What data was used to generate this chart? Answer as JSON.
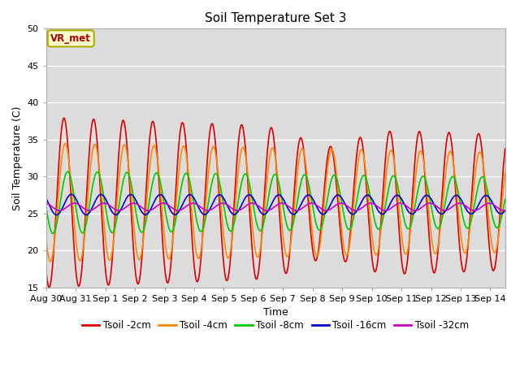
{
  "title": "Soil Temperature Set 3",
  "xlabel": "Time",
  "ylabel": "Soil Temperature (C)",
  "ylim": [
    15,
    50
  ],
  "xlim_days": 15.5,
  "annotation": "VR_met",
  "tick_labels": [
    "Aug 30",
    "Aug 31",
    "Sep 1",
    "Sep 2",
    "Sep 3",
    "Sep 4",
    "Sep 5",
    "Sep 6",
    "Sep 7",
    "Sep 8",
    "Sep 9",
    "Sep 10",
    "Sep 11",
    "Sep 12",
    "Sep 13",
    "Sep 14"
  ],
  "series_order": [
    "Tsoil -2cm",
    "Tsoil -4cm",
    "Tsoil -8cm",
    "Tsoil -16cm",
    "Tsoil -32cm"
  ],
  "series": {
    "Tsoil -2cm": {
      "color": "#dd0000",
      "lw": 1.2,
      "mean": 26.5,
      "amp": 11.5,
      "peak_hour": 14.5,
      "amp_trend": -0.15,
      "amp_mid_dip": true
    },
    "Tsoil -4cm": {
      "color": "#ff8800",
      "lw": 1.2,
      "mean": 26.5,
      "amp": 8.0,
      "peak_hour": 15.5,
      "amp_trend": -0.08
    },
    "Tsoil -8cm": {
      "color": "#00cc00",
      "lw": 1.2,
      "mean": 26.5,
      "amp": 4.2,
      "peak_hour": 17.5,
      "amp_trend": -0.05
    },
    "Tsoil -16cm": {
      "color": "#0000cc",
      "lw": 1.2,
      "mean": 26.2,
      "amp": 1.4,
      "peak_hour": 20.5,
      "amp_trend": -0.01
    },
    "Tsoil -32cm": {
      "color": "#cc00cc",
      "lw": 1.2,
      "mean": 25.9,
      "amp": 0.5,
      "peak_hour": 23.0,
      "amp_trend": 0.0
    }
  },
  "fig_facecolor": "#ffffff",
  "axes_facecolor": "#dcdcdc",
  "grid_color": "#ffffff",
  "yticks": [
    15,
    20,
    25,
    30,
    35,
    40,
    45,
    50
  ],
  "tick_fontsize": 8,
  "label_fontsize": 9,
  "title_fontsize": 11
}
